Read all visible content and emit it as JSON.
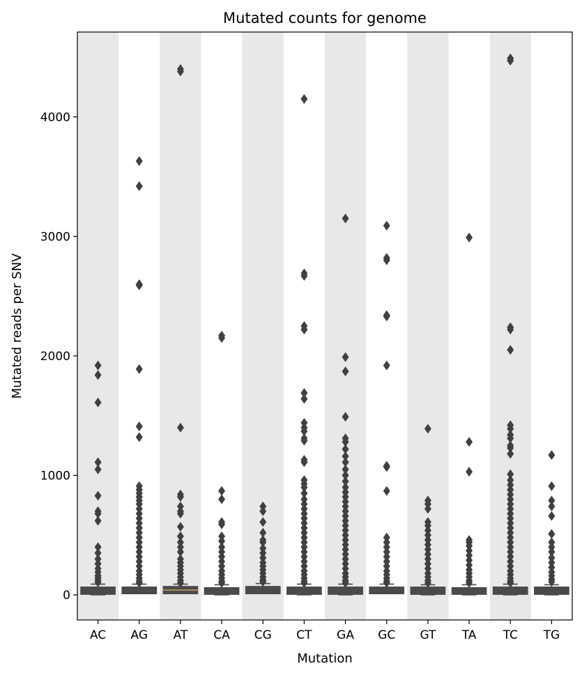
{
  "chart_data": {
    "type": "box",
    "title": "Mutated counts for genome",
    "xlabel": "Mutation",
    "ylabel": "Mutated reads per SNV",
    "ylim": [
      -210,
      4710
    ],
    "yticks": [
      0,
      1000,
      2000,
      3000,
      4000
    ],
    "ytick_labels": [
      "0",
      "1000",
      "2000",
      "3000",
      "4000"
    ],
    "grid": false,
    "shaded_bands": "alternating gray bands on every other category (AC, AT, CG, GA, GT, TC)",
    "colors": {
      "band": "#e8e8e8",
      "box": "#4a4a4a",
      "marker": "#404040",
      "median_AT": "#c8a060"
    },
    "categories": [
      "AC",
      "AG",
      "AT",
      "CA",
      "CG",
      "CT",
      "GA",
      "GC",
      "GT",
      "TA",
      "TC",
      "TG"
    ],
    "boxes": [
      {
        "label": "AC",
        "q1": 15,
        "median": 35,
        "q3": 55,
        "whisker_low": 0,
        "whisker_high": 90,
        "outliers": [
          1920,
          1840,
          1610,
          1110,
          1050,
          830,
          700,
          680,
          620,
          400,
          350,
          300,
          260,
          220,
          190,
          160,
          140,
          120,
          105
        ]
      },
      {
        "label": "AG",
        "q1": 20,
        "median": 35,
        "q3": 55,
        "whisker_low": 10,
        "whisker_high": 90,
        "outliers": [
          3630,
          3420,
          2600,
          2590,
          1890,
          1410,
          1320,
          910,
          880,
          850,
          820,
          790,
          760,
          720,
          680,
          640,
          600,
          560,
          520,
          480,
          440,
          400,
          360,
          320,
          280,
          240,
          200,
          170,
          140,
          115,
          100
        ]
      },
      {
        "label": "AT",
        "q1": 20,
        "median": 40,
        "q3": 60,
        "whisker_low": 10,
        "whisker_high": 90,
        "outliers": [
          4400,
          4380,
          1400,
          840,
          820,
          740,
          700,
          680,
          570,
          490,
          440,
          400,
          360,
          300,
          270,
          240,
          210,
          180,
          150,
          120,
          100
        ]
      },
      {
        "label": "CA",
        "q1": 15,
        "median": 30,
        "q3": 50,
        "whisker_low": 0,
        "whisker_high": 85,
        "outliers": [
          2170,
          2150,
          870,
          800,
          610,
          590,
          490,
          450,
          400,
          360,
          320,
          280,
          240,
          200,
          170,
          140,
          115,
          100
        ]
      },
      {
        "label": "CG",
        "q1": 20,
        "median": 40,
        "q3": 60,
        "whisker_low": 15,
        "whisker_high": 95,
        "outliers": [
          740,
          700,
          610,
          520,
          460,
          440,
          390,
          350,
          310,
          270,
          240,
          210,
          180,
          150,
          125,
          110
        ]
      },
      {
        "label": "CT",
        "q1": 15,
        "median": 30,
        "q3": 55,
        "whisker_low": 0,
        "whisker_high": 90,
        "outliers": [
          4150,
          2690,
          2670,
          2250,
          2220,
          1690,
          1640,
          1440,
          1400,
          1370,
          1310,
          1290,
          1130,
          1110,
          960,
          930,
          900,
          850,
          800,
          760,
          720,
          680,
          640,
          600,
          560,
          520,
          480,
          440,
          400,
          360,
          320,
          280,
          240,
          200,
          170,
          140,
          115,
          100
        ]
      },
      {
        "label": "GA",
        "q1": 15,
        "median": 30,
        "q3": 55,
        "whisker_low": 0,
        "whisker_high": 90,
        "outliers": [
          3150,
          1990,
          1870,
          1490,
          1310,
          1280,
          1220,
          1160,
          1110,
          1050,
          1000,
          950,
          900,
          860,
          820,
          780,
          740,
          700,
          660,
          620,
          580,
          540,
          500,
          460,
          420,
          380,
          340,
          300,
          260,
          220,
          180,
          150,
          120,
          100
        ]
      },
      {
        "label": "GC",
        "q1": 20,
        "median": 35,
        "q3": 55,
        "whisker_low": 15,
        "whisker_high": 90,
        "outliers": [
          3090,
          2820,
          2800,
          2340,
          2330,
          1920,
          1080,
          1070,
          870,
          480,
          440,
          400,
          360,
          320,
          280,
          240,
          200,
          170,
          140,
          115,
          100
        ]
      },
      {
        "label": "GT",
        "q1": 15,
        "median": 30,
        "q3": 55,
        "whisker_low": 0,
        "whisker_high": 85,
        "outliers": [
          1390,
          790,
          760,
          720,
          610,
          580,
          540,
          500,
          460,
          420,
          380,
          340,
          300,
          260,
          220,
          180,
          150,
          120,
          100
        ]
      },
      {
        "label": "TA",
        "q1": 15,
        "median": 30,
        "q3": 50,
        "whisker_low": 0,
        "whisker_high": 85,
        "outliers": [
          2990,
          1280,
          1030,
          460,
          440,
          410,
          370,
          330,
          290,
          250,
          210,
          180,
          150,
          120,
          100
        ]
      },
      {
        "label": "TC",
        "q1": 15,
        "median": 30,
        "q3": 55,
        "whisker_low": 0,
        "whisker_high": 90,
        "outliers": [
          4490,
          4470,
          2240,
          2220,
          2050,
          1420,
          1390,
          1340,
          1310,
          1250,
          1230,
          1180,
          1010,
          960,
          920,
          880,
          840,
          800,
          760,
          720,
          680,
          640,
          600,
          560,
          520,
          480,
          440,
          400,
          360,
          320,
          280,
          240,
          200,
          170,
          140,
          115,
          100
        ]
      },
      {
        "label": "TG",
        "q1": 15,
        "median": 30,
        "q3": 55,
        "whisker_low": 0,
        "whisker_high": 85,
        "outliers": [
          1170,
          910,
          790,
          740,
          660,
          510,
          440,
          400,
          360,
          310,
          270,
          230,
          190,
          160,
          130,
          110
        ]
      }
    ]
  }
}
